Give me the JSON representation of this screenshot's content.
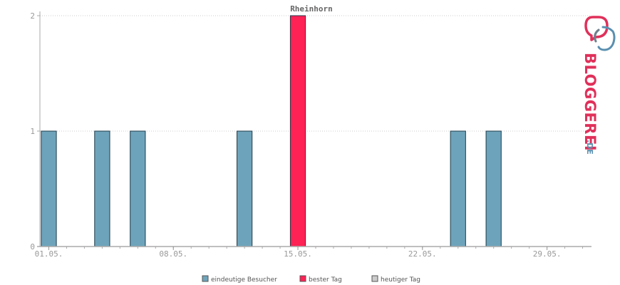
{
  "chart_data": {
    "type": "bar",
    "title": "Rheinhorn",
    "xlabel": "",
    "ylabel": "",
    "ylim": [
      0,
      2
    ],
    "y_ticks": [
      "0",
      "1",
      "2"
    ],
    "x_tick_labels": [
      "01.05.",
      "08.05.",
      "15.05.",
      "22.05.",
      "29.05."
    ],
    "x_tick_days": [
      1,
      8,
      15,
      22,
      29
    ],
    "x_day_range": [
      0.5,
      31.5
    ],
    "grid": true,
    "legend_position": "bottom",
    "series": [
      {
        "name": "eindeutige Besucher",
        "color": "#6ea4bb",
        "points": [
          {
            "day": 1,
            "value": 1
          },
          {
            "day": 4,
            "value": 1
          },
          {
            "day": 6,
            "value": 1
          },
          {
            "day": 12,
            "value": 1
          },
          {
            "day": 24,
            "value": 1
          },
          {
            "day": 26,
            "value": 1
          }
        ]
      },
      {
        "name": "bester Tag",
        "color": "#ff2255",
        "points": [
          {
            "day": 15,
            "value": 2
          }
        ]
      },
      {
        "name": "heutiger Tag",
        "color": "#cccccc",
        "points": []
      }
    ]
  },
  "logo": {
    "wordmark": "BLOGGEREI",
    "suffix": ".DE",
    "colors": {
      "pink": "#e0305a",
      "grey": "#6e7f8c",
      "blue": "#5a8fb0"
    }
  }
}
